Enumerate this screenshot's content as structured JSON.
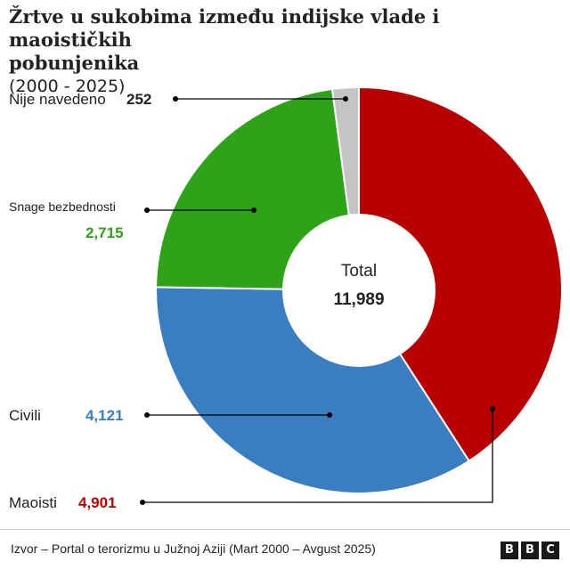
{
  "title_lines": [
    "Žrtve u sukobima između indijske vlade i maoističkih",
    "pobunjenika"
  ],
  "subtitle": "(2000 - 2025)",
  "center": {
    "label": "Total",
    "value": "11,989"
  },
  "source": "Izvor – Portal o terorizmu u Južnoj Aziji (Mart 2000 – Avgust 2025)",
  "brand": [
    "B",
    "B",
    "C"
  ],
  "chart_data": {
    "type": "pie",
    "variant": "donut",
    "title": "Žrtve u sukobima između indijske vlade i maoističkih pobunjenika (2000 - 2025)",
    "total": 11989,
    "slices": [
      {
        "name": "Maoisti",
        "value": 4901,
        "label": "4,901",
        "color": "#b80000"
      },
      {
        "name": "Civili",
        "value": 4121,
        "label": "4,121",
        "color": "#3a7dc0"
      },
      {
        "name": "Snage bezbednosti",
        "value": 2715,
        "label": "2,715",
        "color": "#2ea31a"
      },
      {
        "name": "Nije navedeno",
        "value": 252,
        "label": "252",
        "color": "#c4c4c4"
      }
    ],
    "legend": "callouts"
  }
}
